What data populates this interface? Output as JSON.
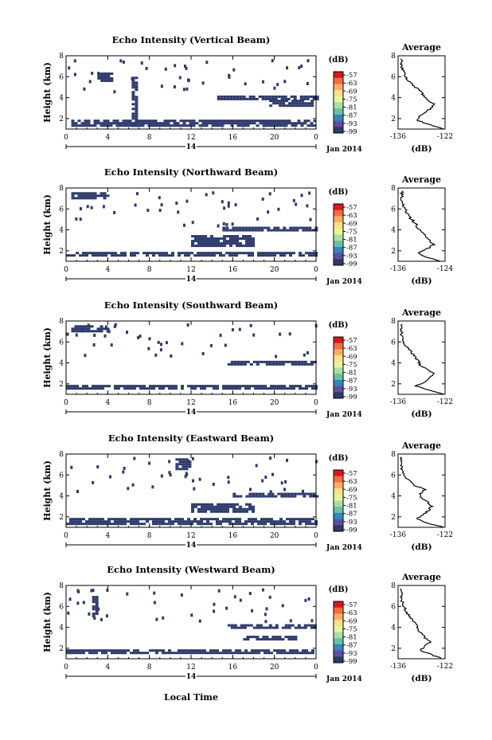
{
  "figure": {
    "xlabel": "Local Time",
    "colorbar_unit": "(dB)",
    "date_label": "Jan 2014",
    "day_label": "14",
    "avg_title": "Average",
    "avg_xlabel": "(dB)",
    "ylabel": "Height (km)",
    "data_color": "#2e3a6a"
  },
  "colorbar": {
    "ticks": [
      "-57",
      "-63",
      "-69",
      "-75",
      "-81",
      "-87",
      "-93",
      "-99"
    ],
    "colors": [
      "#d7191c",
      "#f46d43",
      "#fdae61",
      "#fee08b",
      "#e6f598",
      "#abdda4",
      "#66c2a5",
      "#3288bd",
      "#5e4fa2",
      "#2e3a6a"
    ]
  },
  "chart_data": [
    {
      "type": "heatmap",
      "title": "Echo Intensity (Vertical Beam)",
      "xlabel": "Local Time",
      "ylabel": "Height (km)",
      "xlim": [
        0,
        24
      ],
      "ylim": [
        1,
        8
      ],
      "x_ticks": [
        "0",
        "4",
        "8",
        "12",
        "16",
        "20",
        "0"
      ],
      "y_ticks": [
        "2",
        "4",
        "6",
        "8"
      ],
      "colorbar_label": "(dB)",
      "echo_regions": [
        {
          "t": [
            0.5,
            24
          ],
          "h": [
            1.4,
            1.9
          ]
        },
        {
          "t": [
            6.3,
            6.9
          ],
          "h": [
            1.4,
            6.0
          ]
        },
        {
          "t": [
            14.5,
            24
          ],
          "h": [
            3.9,
            4.2
          ]
        },
        {
          "t": [
            19.5,
            23.5
          ],
          "h": [
            3.2,
            3.8
          ]
        },
        {
          "t": [
            3.0,
            4.5
          ],
          "h": [
            5.6,
            6.4
          ]
        }
      ],
      "average_profile": {
        "title": "Average",
        "xlabel": "(dB)",
        "xlim": [
          -136,
          -122
        ],
        "x_ticks": [
          "-136",
          "-122"
        ],
        "ylim": [
          1,
          8
        ],
        "y_ticks": [
          "2",
          "4",
          "6",
          "8"
        ],
        "height": [
          1.0,
          1.4,
          1.8,
          2.2,
          2.6,
          3.0,
          3.4,
          3.8,
          4.2,
          4.6,
          5.0,
          5.4,
          5.8,
          6.2,
          6.6,
          7.0,
          7.4,
          7.8
        ],
        "value": [
          -122.5,
          -126.5,
          -130,
          -129.5,
          -128,
          -126,
          -125,
          -127.5,
          -128.5,
          -129,
          -131,
          -132,
          -133.5,
          -134,
          -134.5,
          -135,
          -135,
          -135
        ]
      }
    },
    {
      "type": "heatmap",
      "title": "Echo Intensity (Northward Beam)",
      "xlabel": "Local Time",
      "ylabel": "Height (km)",
      "xlim": [
        0,
        24
      ],
      "ylim": [
        1,
        8
      ],
      "x_ticks": [
        "0",
        "4",
        "8",
        "12",
        "16",
        "20",
        "0"
      ],
      "y_ticks": [
        "2",
        "4",
        "6",
        "8"
      ],
      "colorbar_label": "(dB)",
      "echo_regions": [
        {
          "t": [
            0,
            24
          ],
          "h": [
            1.5,
            1.9
          ]
        },
        {
          "t": [
            15,
            24
          ],
          "h": [
            3.9,
            4.3
          ]
        },
        {
          "t": [
            12,
            18
          ],
          "h": [
            2.5,
            3.5
          ]
        },
        {
          "t": [
            0.5,
            4
          ],
          "h": [
            7.0,
            7.6
          ]
        }
      ],
      "average_profile": {
        "title": "Average",
        "xlabel": "(dB)",
        "xlim": [
          -136,
          -124
        ],
        "x_ticks": [
          "-136",
          "-124"
        ],
        "ylim": [
          1,
          8
        ],
        "y_ticks": [
          "2",
          "4",
          "6",
          "8"
        ],
        "height": [
          1.0,
          1.4,
          1.8,
          2.2,
          2.6,
          3.0,
          3.4,
          3.8,
          4.2,
          4.6,
          5.0,
          5.4,
          5.8,
          6.2,
          6.6,
          7.0,
          7.4,
          7.8
        ],
        "value": [
          -125,
          -129,
          -131,
          -128.5,
          -127,
          -128,
          -129,
          -130,
          -131,
          -131.5,
          -132.5,
          -133.5,
          -134,
          -134.5,
          -135,
          -135,
          -135,
          -135
        ]
      }
    },
    {
      "type": "heatmap",
      "title": "Echo Intensity (Southward Beam)",
      "xlabel": "Local Time",
      "ylabel": "Height (km)",
      "xlim": [
        0,
        24
      ],
      "ylim": [
        1,
        8
      ],
      "x_ticks": [
        "0",
        "4",
        "8",
        "12",
        "16",
        "20",
        "0"
      ],
      "y_ticks": [
        "2",
        "4",
        "6",
        "8"
      ],
      "colorbar_label": "(dB)",
      "echo_regions": [
        {
          "t": [
            0,
            24
          ],
          "h": [
            1.5,
            1.9
          ]
        },
        {
          "t": [
            15.5,
            24
          ],
          "h": [
            3.8,
            4.2
          ]
        },
        {
          "t": [
            0.5,
            4
          ],
          "h": [
            7.0,
            7.6
          ]
        }
      ],
      "average_profile": {
        "title": "Average",
        "xlabel": "(dB)",
        "xlim": [
          -136,
          -122
        ],
        "x_ticks": [
          "-136",
          "-122"
        ],
        "ylim": [
          1,
          8
        ],
        "y_ticks": [
          "2",
          "4",
          "6",
          "8"
        ],
        "height": [
          1.0,
          1.4,
          1.8,
          2.2,
          2.6,
          3.0,
          3.4,
          3.8,
          4.2,
          4.6,
          5.0,
          5.4,
          5.8,
          6.2,
          6.6,
          7.0,
          7.4,
          7.8
        ],
        "value": [
          -122.5,
          -127,
          -130.5,
          -128,
          -126.5,
          -125.5,
          -127.5,
          -129.5,
          -130,
          -131,
          -132,
          -133,
          -134,
          -134.5,
          -135,
          -135,
          -135,
          -135
        ]
      }
    },
    {
      "type": "heatmap",
      "title": "Echo Intensity (Eastward Beam)",
      "xlabel": "Local Time",
      "ylabel": "Height (km)",
      "xlim": [
        0,
        24
      ],
      "ylim": [
        1,
        8
      ],
      "x_ticks": [
        "0",
        "4",
        "8",
        "12",
        "16",
        "20",
        "0"
      ],
      "y_ticks": [
        "2",
        "4",
        "6",
        "8"
      ],
      "colorbar_label": "(dB)",
      "echo_regions": [
        {
          "t": [
            0,
            24
          ],
          "h": [
            1.4,
            1.9
          ]
        },
        {
          "t": [
            16,
            24
          ],
          "h": [
            3.9,
            4.3
          ]
        },
        {
          "t": [
            12,
            18
          ],
          "h": [
            2.5,
            3.3
          ]
        },
        {
          "t": [
            10.5,
            12
          ],
          "h": [
            6.5,
            7.6
          ]
        }
      ],
      "average_profile": {
        "title": "Average",
        "xlabel": "(dB)",
        "xlim": [
          -136,
          -122
        ],
        "x_ticks": [
          "-136",
          "-122"
        ],
        "ylim": [
          1,
          8
        ],
        "y_ticks": [
          "2",
          "4",
          "6",
          "8"
        ],
        "height": [
          1.0,
          1.4,
          1.8,
          2.2,
          2.6,
          3.0,
          3.4,
          3.8,
          4.2,
          4.6,
          5.0,
          5.4,
          5.8,
          6.2,
          6.6,
          7.0,
          7.4,
          7.8
        ],
        "value": [
          -122.5,
          -127,
          -130.5,
          -128.5,
          -127,
          -126,
          -127,
          -129,
          -129.5,
          -128,
          -131,
          -132.5,
          -134,
          -134.5,
          -135,
          -135,
          -135,
          -135
        ]
      }
    },
    {
      "type": "heatmap",
      "title": "Echo Intensity (Westward Beam)",
      "xlabel": "Local Time",
      "ylabel": "Height (km)",
      "xlim": [
        0,
        24
      ],
      "ylim": [
        1,
        8
      ],
      "x_ticks": [
        "0",
        "4",
        "8",
        "12",
        "16",
        "20",
        "0"
      ],
      "y_ticks": [
        "2",
        "4",
        "6",
        "8"
      ],
      "colorbar_label": "(dB)",
      "echo_regions": [
        {
          "t": [
            0,
            24
          ],
          "h": [
            1.5,
            1.9
          ]
        },
        {
          "t": [
            15.5,
            24
          ],
          "h": [
            3.9,
            4.3
          ]
        },
        {
          "t": [
            17,
            22
          ],
          "h": [
            2.9,
            3.2
          ]
        },
        {
          "t": [
            2.5,
            3
          ],
          "h": [
            5.0,
            7.0
          ]
        }
      ],
      "average_profile": {
        "title": "Average",
        "xlabel": "(dB)",
        "xlim": [
          -136,
          -122
        ],
        "x_ticks": [
          "-136",
          "-122"
        ],
        "ylim": [
          1,
          8
        ],
        "y_ticks": [
          "2",
          "4",
          "6",
          "8"
        ],
        "height": [
          1.0,
          1.4,
          1.8,
          2.2,
          2.6,
          3.0,
          3.4,
          3.8,
          4.2,
          4.6,
          5.0,
          5.4,
          5.8,
          6.2,
          6.6,
          7.0,
          7.4,
          7.8
        ],
        "value": [
          -123,
          -126,
          -129.5,
          -128,
          -126.5,
          -128,
          -129,
          -130,
          -130.5,
          -131.5,
          -132.5,
          -133.5,
          -134,
          -134.5,
          -135,
          -135,
          -135,
          -135
        ]
      }
    }
  ]
}
